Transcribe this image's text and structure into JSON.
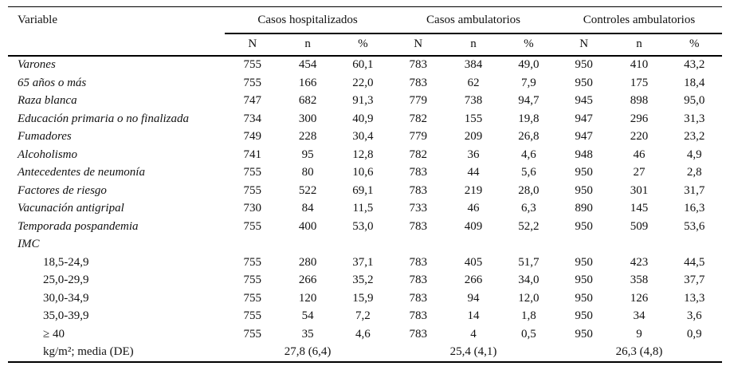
{
  "colors": {
    "background": "#ffffff",
    "text": "#111111",
    "rule": "#000000"
  },
  "table": {
    "variable_header": "Variable",
    "groups": [
      {
        "label": "Casos hospitalizados"
      },
      {
        "label": "Casos ambulatorios"
      },
      {
        "label": "Controles ambulatorios"
      }
    ],
    "subheaders": [
      "N",
      "n",
      "%"
    ],
    "rows": [
      {
        "label": "Varones",
        "style": "italic",
        "cells": [
          "755",
          "454",
          "60,1",
          "783",
          "384",
          "49,0",
          "950",
          "410",
          "43,2"
        ]
      },
      {
        "label": "65 años o más",
        "style": "italic",
        "cells": [
          "755",
          "166",
          "22,0",
          "783",
          "62",
          "7,9",
          "950",
          "175",
          "18,4"
        ]
      },
      {
        "label": "Raza blanca",
        "style": "italic",
        "cells": [
          "747",
          "682",
          "91,3",
          "779",
          "738",
          "94,7",
          "945",
          "898",
          "95,0"
        ]
      },
      {
        "label": "Educación primaria o no finalizada",
        "style": "italic",
        "cells": [
          "734",
          "300",
          "40,9",
          "782",
          "155",
          "19,8",
          "947",
          "296",
          "31,3"
        ]
      },
      {
        "label": "Fumadores",
        "style": "italic",
        "cells": [
          "749",
          "228",
          "30,4",
          "779",
          "209",
          "26,8",
          "947",
          "220",
          "23,2"
        ]
      },
      {
        "label": "Alcoholismo",
        "style": "italic",
        "cells": [
          "741",
          "95",
          "12,8",
          "782",
          "36",
          "4,6",
          "948",
          "46",
          "4,9"
        ]
      },
      {
        "label": "Antecedentes de neumonía",
        "style": "italic",
        "cells": [
          "755",
          "80",
          "10,6",
          "783",
          "44",
          "5,6",
          "950",
          "27",
          "2,8"
        ]
      },
      {
        "label": "Factores de riesgo",
        "style": "italic",
        "cells": [
          "755",
          "522",
          "69,1",
          "783",
          "219",
          "28,0",
          "950",
          "301",
          "31,7"
        ]
      },
      {
        "label": "Vacunación antigripal",
        "style": "italic",
        "cells": [
          "730",
          "84",
          "11,5",
          "733",
          "46",
          "6,3",
          "890",
          "145",
          "16,3"
        ]
      },
      {
        "label": "Temporada pospandemia",
        "style": "italic",
        "cells": [
          "755",
          "400",
          "53,0",
          "783",
          "409",
          "52,2",
          "950",
          "509",
          "53,6"
        ]
      },
      {
        "label": "IMC",
        "style": "italic",
        "cells": []
      },
      {
        "label": "18,5-24,9",
        "style": "indent",
        "cells": [
          "755",
          "280",
          "37,1",
          "783",
          "405",
          "51,7",
          "950",
          "423",
          "44,5"
        ]
      },
      {
        "label": "25,0-29,9",
        "style": "indent",
        "cells": [
          "755",
          "266",
          "35,2",
          "783",
          "266",
          "34,0",
          "950",
          "358",
          "37,7"
        ]
      },
      {
        "label": "30,0-34,9",
        "style": "indent",
        "cells": [
          "755",
          "120",
          "15,9",
          "783",
          "94",
          "12,0",
          "950",
          "126",
          "13,3"
        ]
      },
      {
        "label": "35,0-39,9",
        "style": "indent",
        "cells": [
          "755",
          "54",
          "7,2",
          "783",
          "14",
          "1,8",
          "950",
          "34",
          "3,6"
        ]
      },
      {
        "label": "≥ 40",
        "style": "indent",
        "cells": [
          "755",
          "35",
          "4,6",
          "783",
          "4",
          "0,5",
          "950",
          "9",
          "0,9"
        ]
      },
      {
        "label": "kg/m²; media (DE)",
        "style": "indent",
        "media": [
          "27,8 (6,4)",
          "25,4 (4,1)",
          "26,3 (4,8)"
        ]
      }
    ]
  }
}
